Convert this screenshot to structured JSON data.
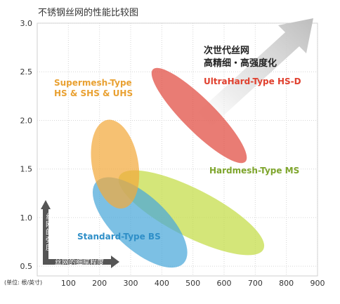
{
  "chart_data": {
    "type": "scatter",
    "title": "不锈钢丝网的性能比较图",
    "xlabel": "丝网的细腻程度",
    "ylabel": "丝网的强度",
    "unit_label": "(单位: 根/英寸)",
    "xlim": [
      0,
      900
    ],
    "ylim": [
      0.3,
      3.0
    ],
    "x_ticks": [
      "100",
      "200",
      "300",
      "400",
      "500",
      "600",
      "700",
      "800",
      "900"
    ],
    "y_ticks": [
      "0.5",
      "1.0",
      "1.5",
      "2.0",
      "2.5",
      "3.0"
    ],
    "grid": true,
    "series": [
      {
        "name": "Supermesh-Type HS & SHS & UHS",
        "color": "#F2A93B",
        "center": [
          250,
          1.55
        ],
        "x_range": [
          210,
          360
        ],
        "y_range": [
          0.95,
          2.0
        ]
      },
      {
        "name": "Standard-Type BS",
        "color": "#49A7DA",
        "center": [
          330,
          0.95
        ],
        "x_range": [
          200,
          480
        ],
        "y_range": [
          0.55,
          1.45
        ]
      },
      {
        "name": "Hardmesh-Type MS",
        "color": "#C3DC45",
        "center": [
          495,
          1.05
        ],
        "x_range": [
          280,
          800
        ],
        "y_range": [
          0.7,
          1.3
        ]
      },
      {
        "name": "UltraHard-Type HS-D",
        "color": "#E04A3F",
        "center": [
          520,
          2.05
        ],
        "x_range": [
          380,
          680
        ],
        "y_range": [
          1.45,
          2.6
        ]
      }
    ],
    "series_labels": [
      {
        "lines": [
          "Supermesh-Type",
          "HS & SHS & UHS"
        ],
        "color": "#E9A132"
      },
      {
        "lines": [
          "Standard-Type BS"
        ],
        "color": "#2F8FC8"
      },
      {
        "lines": [
          "Hardmesh-Type MS"
        ],
        "color": "#7EA52C"
      },
      {
        "lines": [
          "UltraHard-Type HS-D"
        ],
        "color": "#E0402E"
      }
    ],
    "callout": [
      "次世代丝网",
      "高精细・高强度化"
    ]
  }
}
